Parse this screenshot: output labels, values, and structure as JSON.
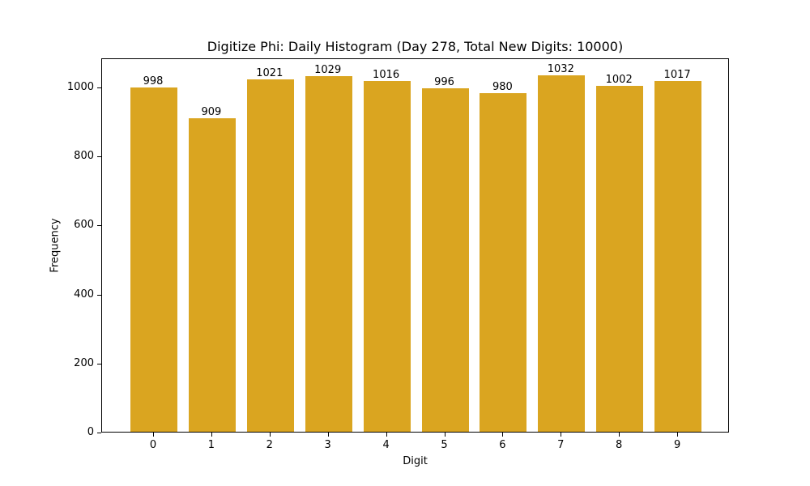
{
  "chart_data": {
    "type": "bar",
    "title": "Digitize Phi: Daily Histogram (Day 278, Total New Digits: 10000)",
    "xlabel": "Digit",
    "ylabel": "Frequency",
    "categories": [
      "0",
      "1",
      "2",
      "3",
      "4",
      "5",
      "6",
      "7",
      "8",
      "9"
    ],
    "values": [
      998,
      909,
      1021,
      1029,
      1016,
      996,
      980,
      1032,
      1002,
      1017
    ],
    "bar_labels": [
      "998",
      "909",
      "1021",
      "1029",
      "1016",
      "996",
      "980",
      "1032",
      "1002",
      "1017"
    ],
    "yticks": [
      "0",
      "200",
      "400",
      "600",
      "800",
      "1000"
    ],
    "ylim": [
      0,
      1084
    ],
    "grid": false,
    "legend": null,
    "bar_color": "#DAA520"
  }
}
